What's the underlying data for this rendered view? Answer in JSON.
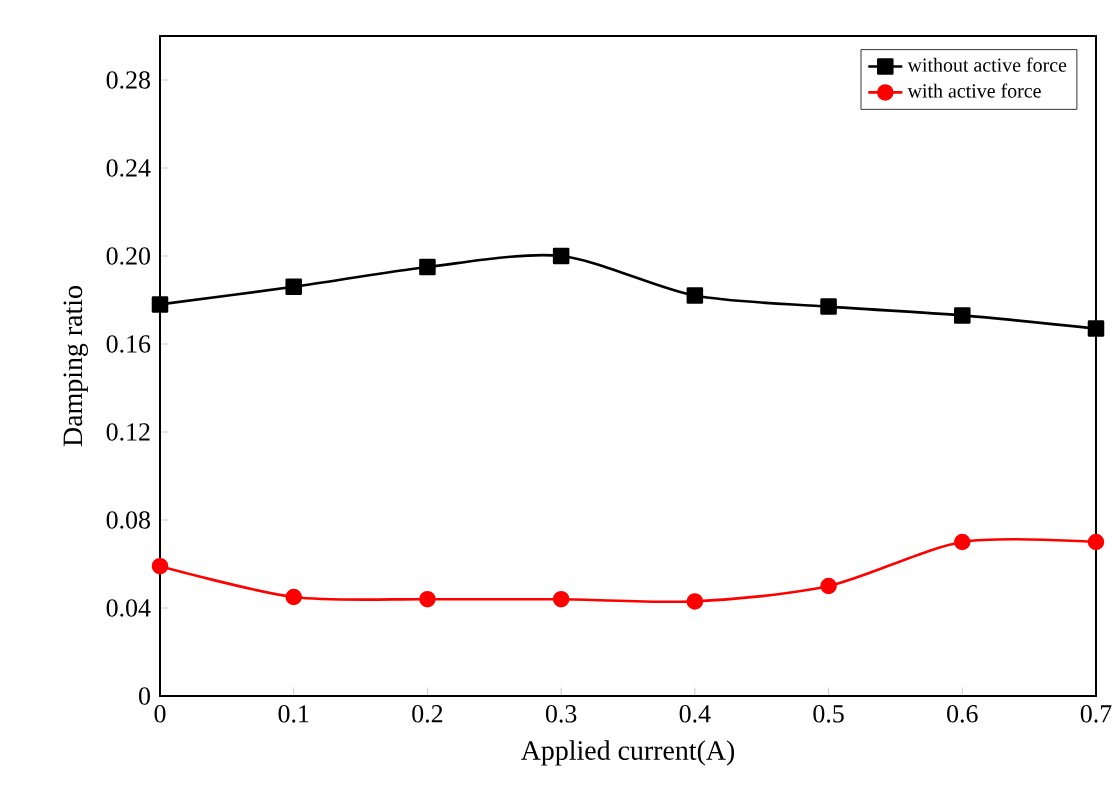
{
  "chart_data": {
    "type": "line",
    "xlabel": "Applied current(A)",
    "ylabel": "Damping ratio",
    "x": [
      0,
      0.1,
      0.2,
      0.3,
      0.4,
      0.5,
      0.6,
      0.7
    ],
    "series": [
      {
        "name": "without active force",
        "color": "#000000",
        "marker": "square",
        "values": [
          0.178,
          0.186,
          0.195,
          0.2,
          0.182,
          0.177,
          0.173,
          0.167
        ]
      },
      {
        "name": "with active force",
        "color": "#ff0000",
        "marker": "circle",
        "values": [
          0.059,
          0.045,
          0.044,
          0.044,
          0.043,
          0.05,
          0.07,
          0.07
        ]
      }
    ],
    "xlim": [
      0,
      0.7
    ],
    "xticks": [
      {
        "value": 0,
        "label": "0"
      },
      0.1,
      0.2,
      0.3,
      0.4,
      0.5,
      0.6,
      0.7
    ],
    "ylim": [
      0,
      0.3
    ],
    "yticks": [
      {
        "value": 0,
        "label": "0"
      },
      0.04,
      0.08,
      0.12,
      0.16,
      {
        "value": 0.2,
        "label": "0.20"
      },
      0.24,
      0.28
    ],
    "grid": false,
    "legend": "top right",
    "line_style": "solid"
  }
}
